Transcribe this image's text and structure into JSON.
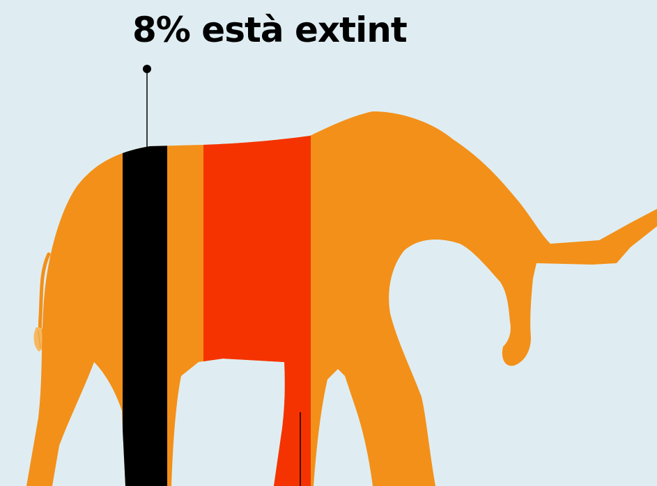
{
  "headline": "8% està extint",
  "colors": {
    "background": "#dfedf2",
    "body": "#f39019",
    "extinct_band": "#000000",
    "endangered_band": "#f53300",
    "tail_tuft": "#f6b75e",
    "leader_line": "#000000"
  },
  "icons": {
    "figure": "elephant-silhouette-icon"
  }
}
